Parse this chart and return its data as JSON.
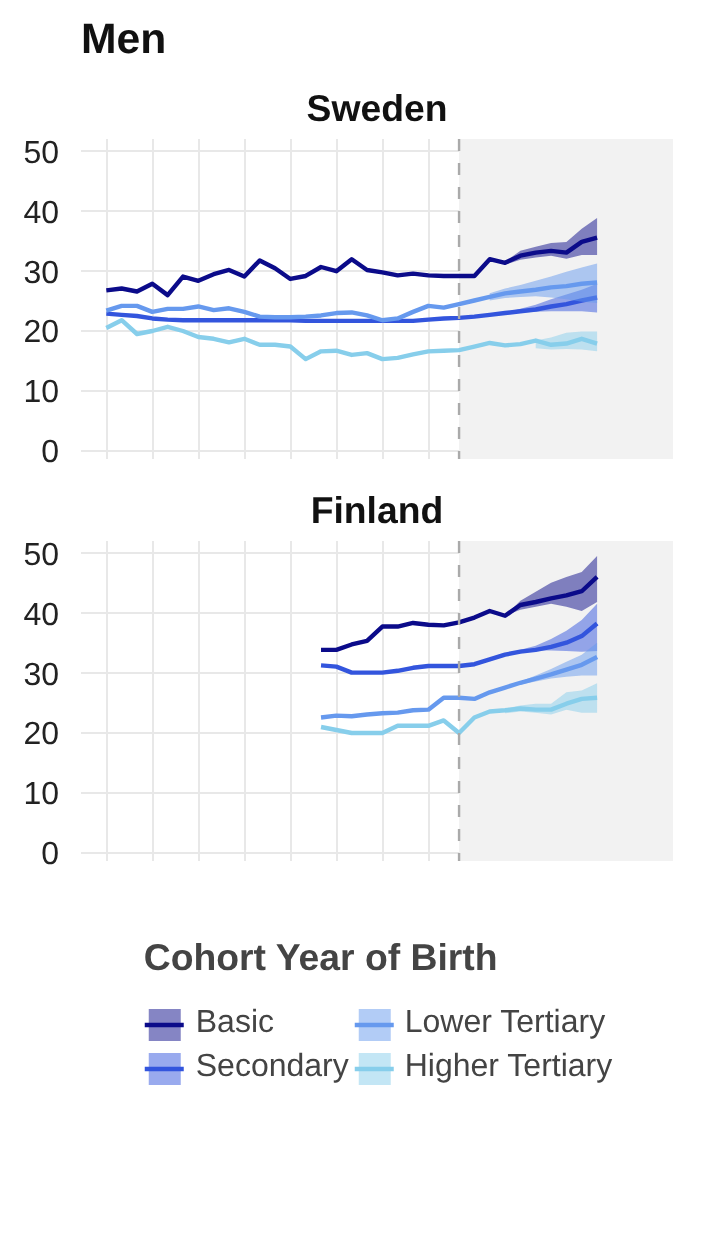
{
  "chart_data": [
    {
      "type": "line",
      "title": "Men",
      "subtitle": "Sweden",
      "categories": [
        null,
        null,
        null,
        null,
        null,
        null,
        null,
        null,
        null,
        null,
        null,
        null,
        null,
        null,
        null,
        null,
        null,
        null,
        null,
        null,
        null,
        null,
        null,
        null,
        null,
        null,
        null,
        null,
        null,
        null,
        null,
        null,
        null
      ],
      "ylim": [
        -1.5,
        52
      ],
      "yticks": [
        0,
        10,
        20,
        30,
        40,
        50
      ],
      "grid": true,
      "tick_labels": "y",
      "series": [
        {
          "color": "#0b0b8a",
          "values": [
            26.7,
            27.0,
            26.5,
            27.8,
            25.9,
            29.0,
            28.3,
            29.4,
            30.1,
            29.0,
            31.7,
            30.4,
            28.6,
            29.1,
            30.6,
            29.9,
            31.9,
            30.1,
            29.7,
            29.2,
            29.5,
            29.2,
            29.1,
            29.1,
            29.1,
            31.9,
            31.3,
            32.5,
            33.0,
            33.3,
            33.0,
            34.8,
            35.5
          ],
          "lower": [
            null,
            null,
            null,
            null,
            null,
            null,
            null,
            null,
            null,
            null,
            null,
            null,
            null,
            null,
            null,
            null,
            null,
            null,
            null,
            null,
            null,
            null,
            null,
            null,
            null,
            null,
            31.0,
            31.8,
            32.2,
            32.5,
            32.0,
            32.6,
            32.6
          ],
          "upper": [
            null,
            null,
            null,
            null,
            null,
            null,
            null,
            null,
            null,
            null,
            null,
            null,
            null,
            null,
            null,
            null,
            null,
            null,
            null,
            null,
            null,
            null,
            null,
            null,
            null,
            null,
            31.5,
            33.3,
            34.0,
            34.6,
            34.8,
            37.0,
            38.8
          ]
        },
        {
          "color": "#3355dd",
          "values": [
            22.8,
            22.6,
            22.4,
            22.0,
            21.8,
            21.7,
            21.7,
            21.7,
            21.7,
            21.7,
            21.7,
            21.7,
            21.7,
            21.6,
            21.6,
            21.6,
            21.6,
            21.6,
            21.6,
            21.6,
            21.6,
            21.8,
            22.0,
            22.1,
            22.3,
            22.6,
            22.9,
            23.2,
            23.5,
            24.0,
            24.4,
            25.0,
            25.5
          ],
          "lower": [
            null,
            null,
            null,
            null,
            null,
            null,
            null,
            null,
            null,
            null,
            null,
            null,
            null,
            null,
            null,
            null,
            null,
            null,
            null,
            null,
            null,
            null,
            null,
            null,
            null,
            null,
            22.8,
            23.0,
            23.1,
            23.2,
            23.2,
            23.2,
            23.0
          ],
          "upper": [
            null,
            null,
            null,
            null,
            null,
            null,
            null,
            null,
            null,
            null,
            null,
            null,
            null,
            null,
            null,
            null,
            null,
            null,
            null,
            null,
            null,
            null,
            null,
            null,
            null,
            null,
            23.0,
            23.6,
            24.3,
            25.2,
            26.0,
            26.8,
            27.8
          ]
        },
        {
          "color": "#6699ee",
          "values": [
            23.3,
            24.1,
            24.1,
            23.1,
            23.6,
            23.6,
            24.0,
            23.4,
            23.7,
            23.1,
            22.3,
            22.2,
            22.2,
            22.3,
            22.5,
            22.9,
            23.0,
            22.5,
            21.7,
            22.0,
            23.1,
            24.1,
            23.8,
            24.4,
            25.0,
            25.6,
            26.2,
            26.5,
            26.8,
            27.2,
            27.4,
            27.8,
            28.0
          ],
          "lower": [
            null,
            null,
            null,
            null,
            null,
            null,
            null,
            null,
            null,
            null,
            null,
            null,
            null,
            null,
            null,
            null,
            null,
            null,
            null,
            null,
            null,
            null,
            null,
            null,
            null,
            25.0,
            25.4,
            25.6,
            25.7,
            25.5,
            25.2,
            24.8,
            24.6
          ],
          "upper": [
            null,
            null,
            null,
            null,
            null,
            null,
            null,
            null,
            null,
            null,
            null,
            null,
            null,
            null,
            null,
            null,
            null,
            null,
            null,
            null,
            null,
            null,
            null,
            null,
            null,
            26.2,
            27.0,
            27.6,
            28.3,
            29.0,
            29.8,
            30.5,
            31.2
          ]
        },
        {
          "color": "#87ceeb",
          "values": [
            20.4,
            21.7,
            19.4,
            19.9,
            20.6,
            19.9,
            18.9,
            18.6,
            18.0,
            18.6,
            17.6,
            17.6,
            17.3,
            15.2,
            16.5,
            16.6,
            15.9,
            16.2,
            15.2,
            15.4,
            16.0,
            16.5,
            16.6,
            16.7,
            17.3,
            17.9,
            17.5,
            17.7,
            18.3,
            17.6,
            17.8,
            18.6,
            17.8
          ],
          "lower": [
            null,
            null,
            null,
            null,
            null,
            null,
            null,
            null,
            null,
            null,
            null,
            null,
            null,
            null,
            null,
            null,
            null,
            null,
            null,
            null,
            null,
            null,
            null,
            null,
            null,
            null,
            null,
            null,
            17.0,
            16.8,
            16.9,
            16.8,
            16.5
          ],
          "upper": [
            null,
            null,
            null,
            null,
            null,
            null,
            null,
            null,
            null,
            null,
            null,
            null,
            null,
            null,
            null,
            null,
            null,
            null,
            null,
            null,
            null,
            null,
            null,
            null,
            null,
            null,
            null,
            null,
            18.3,
            18.8,
            19.6,
            19.8,
            19.8
          ]
        }
      ]
    },
    {
      "type": "line",
      "title": "Finland",
      "legend_title": "Cohort Year of Birth",
      "legend": "bottom",
      "categories": [
        null,
        null,
        null,
        null,
        null,
        null,
        null,
        null,
        null,
        null,
        null,
        null,
        null,
        null,
        null,
        null,
        null,
        null,
        null,
        null,
        null,
        null,
        null,
        null,
        null,
        null,
        null,
        null,
        null,
        null,
        null,
        null,
        null
      ],
      "ylim": [
        -1.5,
        52
      ],
      "yticks": [
        0,
        10,
        20,
        30,
        40,
        50
      ],
      "grid": true,
      "tick_labels": "y",
      "series": [
        {
          "name": "Basic",
          "color": "#0b0b8a",
          "values": [
            null,
            null,
            null,
            null,
            null,
            null,
            null,
            null,
            null,
            null,
            null,
            null,
            null,
            null,
            33.8,
            33.8,
            34.7,
            35.3,
            37.7,
            37.7,
            38.3,
            38.0,
            37.9,
            38.4,
            39.2,
            40.3,
            39.5,
            41.3,
            41.8,
            42.4,
            42.9,
            43.6,
            46.0
          ],
          "lower": [
            null,
            null,
            null,
            null,
            null,
            null,
            null,
            null,
            null,
            null,
            null,
            null,
            null,
            null,
            null,
            null,
            null,
            null,
            null,
            null,
            null,
            null,
            null,
            null,
            null,
            null,
            39.5,
            40.5,
            41.0,
            41.5,
            41.0,
            40.3,
            41.8
          ],
          "upper": [
            null,
            null,
            null,
            null,
            null,
            null,
            null,
            null,
            null,
            null,
            null,
            null,
            null,
            null,
            null,
            null,
            null,
            null,
            null,
            null,
            null,
            null,
            null,
            null,
            null,
            null,
            39.5,
            42.0,
            43.5,
            45.0,
            46.0,
            46.8,
            49.5
          ]
        },
        {
          "name": "Secondary",
          "color": "#3355dd",
          "values": [
            null,
            null,
            null,
            null,
            null,
            null,
            null,
            null,
            null,
            null,
            null,
            null,
            null,
            null,
            31.2,
            31.0,
            30.0,
            30.0,
            30.0,
            30.3,
            30.8,
            31.1,
            31.1,
            31.1,
            31.4,
            32.2,
            33.0,
            33.5,
            33.8,
            34.3,
            35.0,
            36.1,
            38.2
          ],
          "lower": [
            null,
            null,
            null,
            null,
            null,
            null,
            null,
            null,
            null,
            null,
            null,
            null,
            null,
            null,
            null,
            null,
            null,
            null,
            null,
            null,
            null,
            null,
            null,
            null,
            null,
            null,
            33.0,
            33.5,
            33.7,
            33.7,
            33.6,
            33.5,
            33.6
          ],
          "upper": [
            null,
            null,
            null,
            null,
            null,
            null,
            null,
            null,
            null,
            null,
            null,
            null,
            null,
            null,
            null,
            null,
            null,
            null,
            null,
            null,
            null,
            null,
            null,
            null,
            null,
            null,
            33.0,
            33.8,
            34.5,
            35.6,
            37.0,
            38.8,
            41.5
          ]
        },
        {
          "name": "Lower Tertiary",
          "color": "#6699ee",
          "values": [
            null,
            null,
            null,
            null,
            null,
            null,
            null,
            null,
            null,
            null,
            null,
            null,
            null,
            null,
            22.5,
            22.8,
            22.7,
            23.0,
            23.2,
            23.3,
            23.7,
            23.8,
            25.8,
            25.8,
            25.6,
            26.7,
            27.5,
            28.3,
            29.0,
            29.7,
            30.5,
            31.3,
            32.6
          ],
          "lower": [
            null,
            null,
            null,
            null,
            null,
            null,
            null,
            null,
            null,
            null,
            null,
            null,
            null,
            null,
            null,
            null,
            null,
            null,
            null,
            null,
            null,
            null,
            null,
            null,
            null,
            null,
            27.5,
            28.0,
            28.5,
            29.0,
            29.3,
            29.5,
            29.5
          ],
          "upper": [
            null,
            null,
            null,
            null,
            null,
            null,
            null,
            null,
            null,
            null,
            null,
            null,
            null,
            null,
            null,
            null,
            null,
            null,
            null,
            null,
            null,
            null,
            null,
            null,
            null,
            null,
            27.5,
            28.5,
            29.5,
            30.6,
            31.8,
            33.0,
            35.0
          ]
        },
        {
          "name": "Higher Tertiary",
          "color": "#87ceeb",
          "values": [
            null,
            null,
            null,
            null,
            null,
            null,
            null,
            null,
            null,
            null,
            null,
            null,
            null,
            null,
            20.9,
            20.4,
            19.9,
            19.9,
            19.9,
            21.1,
            21.1,
            21.1,
            22.0,
            19.9,
            22.5,
            23.5,
            23.7,
            24.0,
            23.8,
            23.8,
            24.8,
            25.6,
            25.8
          ],
          "lower": [
            null,
            null,
            null,
            null,
            null,
            null,
            null,
            null,
            null,
            null,
            null,
            null,
            null,
            null,
            null,
            null,
            null,
            null,
            null,
            null,
            null,
            null,
            null,
            null,
            null,
            null,
            23.2,
            23.5,
            23.3,
            23.0,
            23.8,
            23.3,
            23.3
          ],
          "upper": [
            null,
            null,
            null,
            null,
            null,
            null,
            null,
            null,
            null,
            null,
            null,
            null,
            null,
            null,
            null,
            null,
            null,
            null,
            null,
            null,
            null,
            null,
            null,
            null,
            null,
            null,
            24.0,
            24.5,
            24.8,
            24.8,
            26.7,
            27.0,
            28.2
          ]
        }
      ]
    }
  ]
}
